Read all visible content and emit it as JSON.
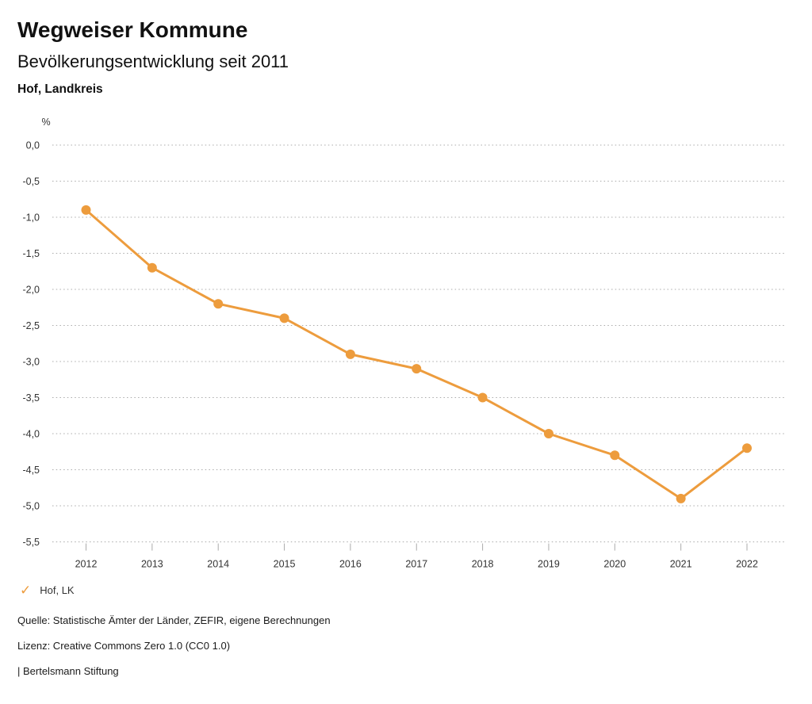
{
  "header": {
    "title": "Wegweiser Kommune",
    "subtitle": "Bevölkerungsentwicklung seit 2011",
    "region": "Hof, Landkreis"
  },
  "chart_data": {
    "type": "line",
    "title": "Bevölkerungsentwicklung seit 2011",
    "xlabel": "",
    "ylabel": "%",
    "categories": [
      "2012",
      "2013",
      "2014",
      "2015",
      "2016",
      "2017",
      "2018",
      "2019",
      "2020",
      "2021",
      "2022"
    ],
    "series": [
      {
        "name": "Hof, LK",
        "values": [
          -0.9,
          -1.7,
          -2.2,
          -2.4,
          -2.9,
          -3.1,
          -3.5,
          -4.0,
          -4.3,
          -4.9,
          -4.2
        ],
        "color": "#ED9C3D"
      }
    ],
    "ylim": [
      -5.5,
      0.0
    ],
    "ytick_step": 0.5,
    "ytick_labels": [
      "0,0",
      "-0,5",
      "-1,0",
      "-1,5",
      "-2,0",
      "-2,5",
      "-3,0",
      "-3,5",
      "-4,0",
      "-4,5",
      "-5,0",
      "-5,5"
    ],
    "grid": "horizontal-dotted",
    "legend_position": "bottom-left",
    "marker": "circle"
  },
  "legend": {
    "check_icon": "✓",
    "label": "Hof, LK"
  },
  "footer": {
    "source": "Quelle: Statistische Ämter der Länder, ZEFIR, eigene Berechnungen",
    "license": "Lizenz: Creative Commons Zero 1.0 (CC0 1.0)",
    "attribution": "| Bertelsmann Stiftung"
  },
  "colors": {
    "line": "#ED9C3D",
    "grid": "#ababab",
    "axis_text": "#333333",
    "title_text": "#111111"
  }
}
